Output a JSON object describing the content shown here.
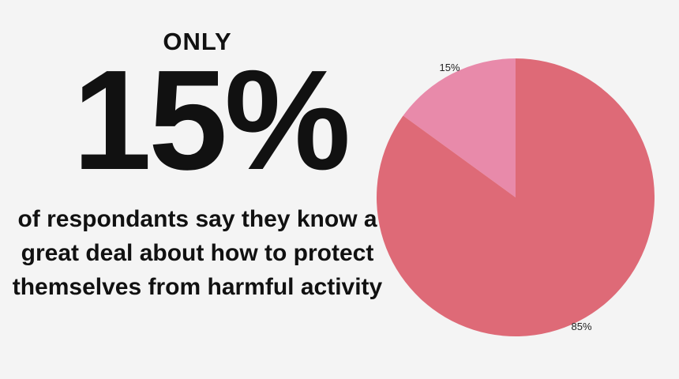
{
  "headline": {
    "kicker": "ONLY",
    "stat": "15%",
    "description": "of respondants say they know a great deal about how to protect themselves from harmful activity"
  },
  "colors": {
    "background": "#f4f4f4",
    "text": "#111111",
    "major_slice": "#de6a77",
    "minor_slice": "#e88aaa"
  },
  "chart_data": {
    "type": "pie",
    "title": "",
    "slices": [
      {
        "label": "15%",
        "value": 15,
        "color": "#e88aaa"
      },
      {
        "label": "85%",
        "value": 85,
        "color": "#de6a77"
      }
    ],
    "start": "top",
    "direction": "counterclockwise",
    "legend": "none"
  }
}
